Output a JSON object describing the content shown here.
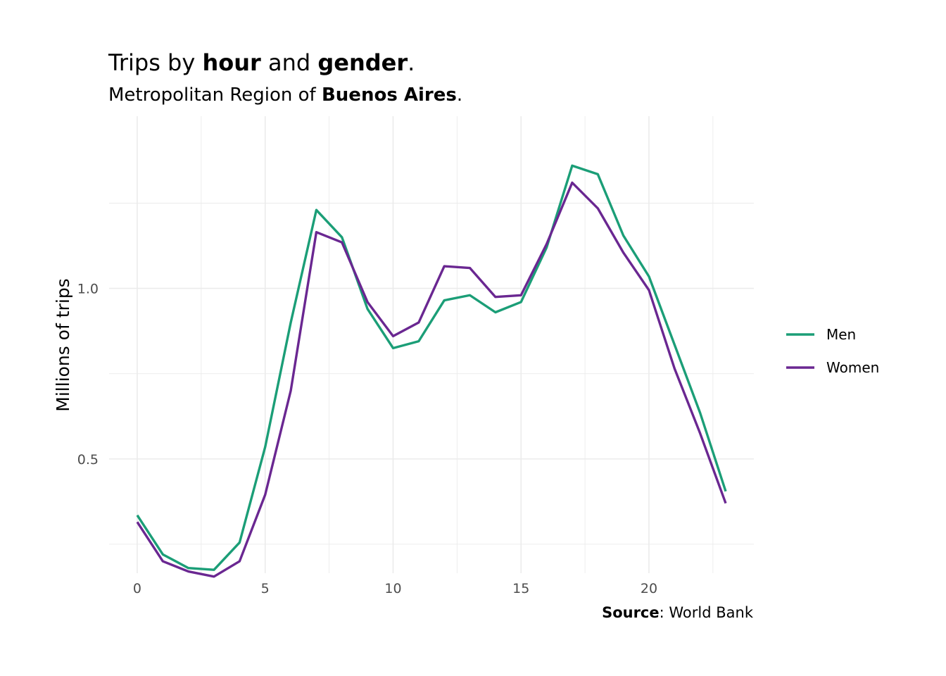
{
  "title": {
    "prefix": "Trips by ",
    "bold1": "hour",
    "middle": " and ",
    "bold2": "gender",
    "suffix": "."
  },
  "subtitle": {
    "prefix": "Metropolitan Region of ",
    "bold": "Buenos Aires",
    "suffix": "."
  },
  "caption": {
    "bold": "Source",
    "rest": ": World Bank"
  },
  "colors": {
    "men": "#1b9e77",
    "women": "#6a2791",
    "grid": "#ebebeb",
    "tick_text": "#4d4d4d"
  },
  "chart_data": {
    "type": "line",
    "title": "Trips by hour and gender.",
    "subtitle": "Metropolitan Region of Buenos Aires.",
    "xlabel": "",
    "ylabel": "Millions of trips",
    "xlim": [
      -1.1,
      24.1
    ],
    "ylim": [
      0.165,
      1.505
    ],
    "x_ticks": [
      0,
      5,
      10,
      15,
      20
    ],
    "x_tick_labels": [
      "0",
      "5",
      "10",
      "15",
      "20"
    ],
    "y_ticks": [
      0.5,
      1.0
    ],
    "y_tick_labels": [
      "0.5",
      "1.0"
    ],
    "grid": true,
    "legend_position": "right",
    "x": [
      0,
      1,
      2,
      3,
      4,
      5,
      6,
      7,
      8,
      9,
      10,
      11,
      12,
      13,
      14,
      15,
      16,
      17,
      18,
      19,
      20,
      21,
      22,
      23
    ],
    "series": [
      {
        "name": "Men",
        "color": "#1b9e77",
        "values": [
          0.335,
          0.22,
          0.18,
          0.175,
          0.255,
          0.535,
          0.9,
          1.23,
          1.15,
          0.94,
          0.825,
          0.845,
          0.965,
          0.98,
          0.93,
          0.96,
          1.12,
          1.36,
          1.335,
          1.155,
          1.035,
          0.835,
          0.635,
          0.405
        ]
      },
      {
        "name": "Women",
        "color": "#6a2791",
        "values": [
          0.315,
          0.2,
          0.17,
          0.155,
          0.2,
          0.395,
          0.7,
          1.165,
          1.135,
          0.96,
          0.86,
          0.9,
          1.065,
          1.06,
          0.975,
          0.98,
          1.13,
          1.31,
          1.235,
          1.105,
          0.995,
          0.765,
          0.575,
          0.37
        ]
      }
    ]
  }
}
